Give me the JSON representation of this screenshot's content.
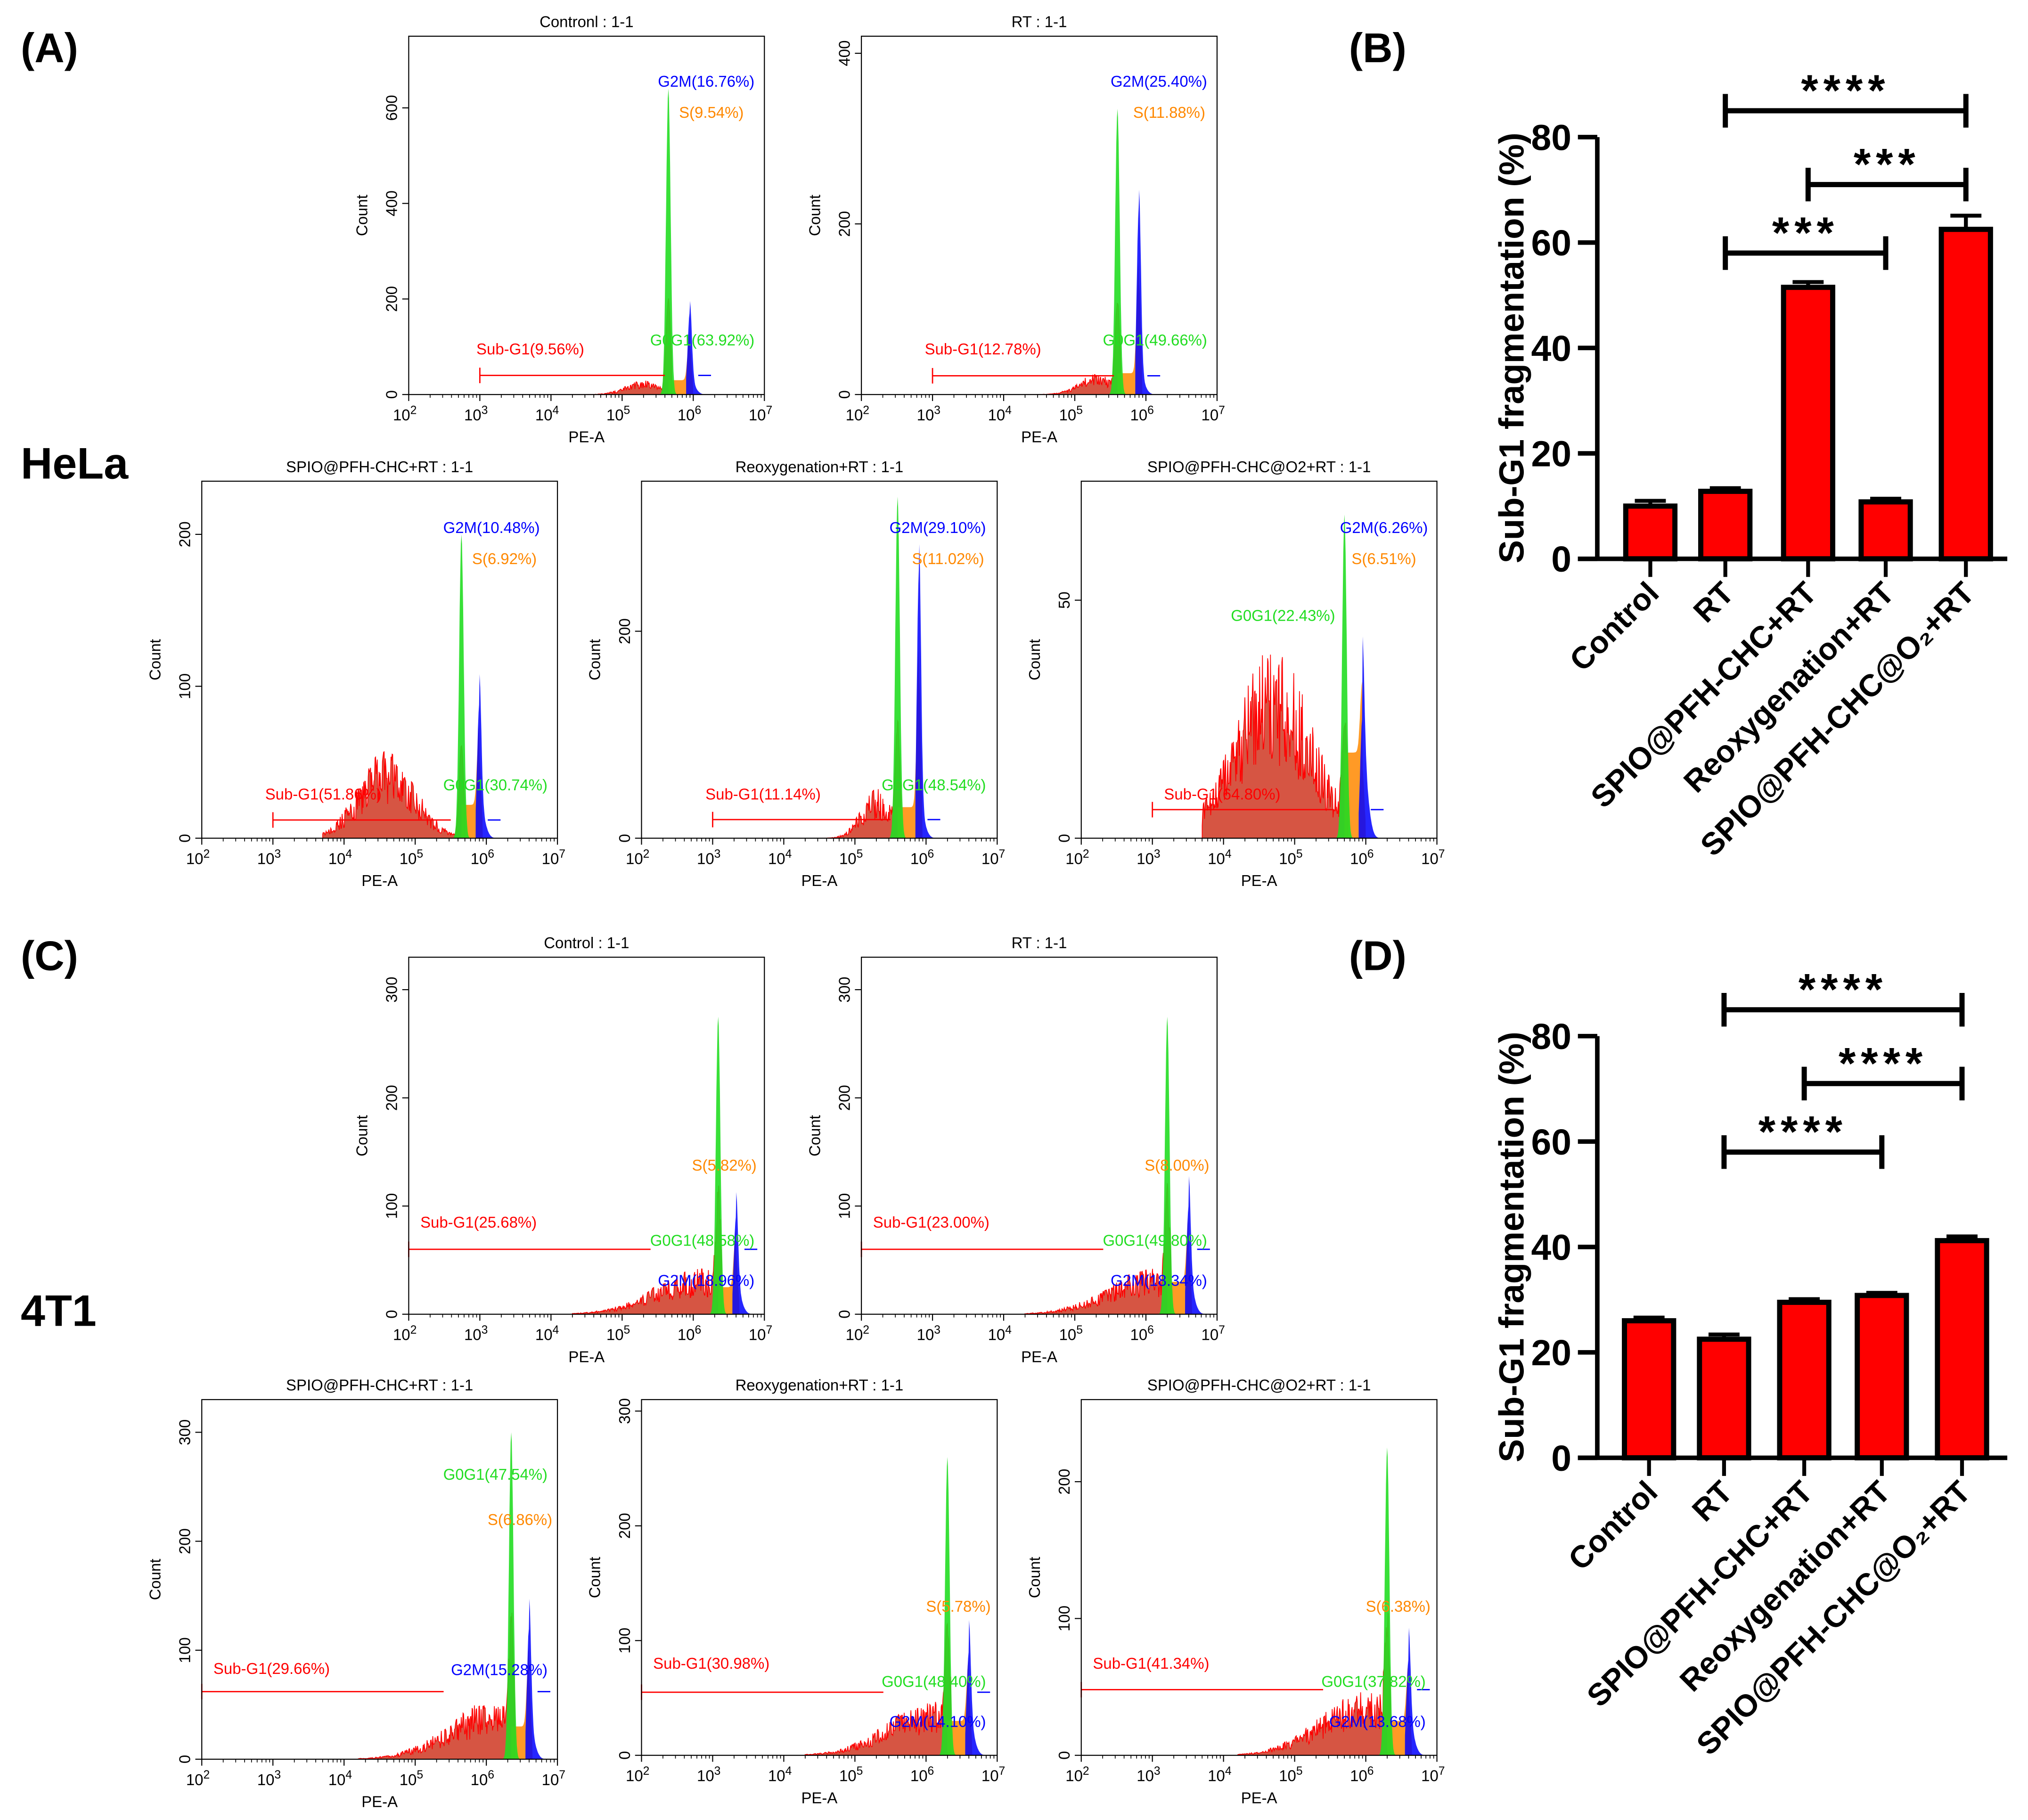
{
  "panel_labels": {
    "a": "(A)",
    "b": "(B)",
    "c": "(C)",
    "d": "(D)"
  },
  "cell_lines": {
    "hela": "HeLa",
    "t4t1": "4T1"
  },
  "colors": {
    "red": "#ff0000",
    "green": "#22dd22",
    "orange": "#ff8800",
    "blue": "#0000ff",
    "bar": "#ff0000",
    "subfill": "#cc2a14"
  },
  "histogram_common": {
    "xlabel": "PE-A",
    "ylabel": "Count",
    "xtick_base": "10",
    "xtick_exponents": [
      2,
      3,
      4,
      5,
      6,
      7
    ]
  },
  "chart_data": {
    "histograms": [
      {
        "type": "area",
        "title": "Contronl : 1-1",
        "ylim": [
          0,
          750
        ],
        "yticks": [
          0,
          200,
          400,
          600
        ],
        "labels": [
          {
            "text": "G2M(16.76%)",
            "color": "blue"
          },
          {
            "text": "S(9.54%)",
            "color": "orange"
          },
          {
            "text": "Sub-G1(9.56%)",
            "color": "red"
          },
          {
            "text": "G0G1(63.92%)",
            "color": "green"
          }
        ],
        "sub": {
          "from": 4.3,
          "center": 5.3,
          "width": 0.35,
          "height": 25
        },
        "g1": {
          "log": 5.65,
          "count": 640
        },
        "s_height": 30,
        "g2": {
          "log": 5.95,
          "count": 170
        },
        "gate": {
          "from": 3,
          "to": 5.6,
          "count": 40
        }
      },
      {
        "type": "area",
        "title": "RT : 1-1",
        "ylim": [
          0,
          420
        ],
        "yticks": [
          0,
          200,
          400
        ],
        "labels": [
          {
            "text": "G2M(25.40%)",
            "color": "blue"
          },
          {
            "text": "S(11.88%)",
            "color": "orange"
          },
          {
            "text": "Sub-G1(12.78%)",
            "color": "red"
          },
          {
            "text": "G0G1(49.66%)",
            "color": "green"
          }
        ],
        "sub": {
          "from": 4.3,
          "center": 5.3,
          "width": 0.35,
          "height": 20
        },
        "g1": {
          "log": 5.6,
          "count": 335
        },
        "s_height": 25,
        "g2": {
          "log": 5.9,
          "count": 220
        },
        "gate": {
          "from": 3,
          "to": 5.55,
          "count": 22
        }
      },
      {
        "type": "area",
        "title": "SPIO@PFH-CHC+RT : 1-1",
        "ylim": [
          0,
          235
        ],
        "yticks": [
          0,
          100,
          200
        ],
        "labels": [
          {
            "text": "G2M(10.48%)",
            "color": "blue"
          },
          {
            "text": "S(6.92%)",
            "color": "orange"
          },
          {
            "text": "Sub-G1(51.86%)",
            "color": "red"
          },
          {
            "text": "G0G1(30.74%)",
            "color": "green"
          }
        ],
        "sub": {
          "from": 3.7,
          "center": 4.6,
          "width": 0.55,
          "height": 50
        },
        "g1": {
          "log": 5.65,
          "count": 200
        },
        "s_height": 22,
        "g2": {
          "log": 5.9,
          "count": 88
        },
        "gate": {
          "from": 3,
          "to": 5.5,
          "count": 12
        }
      },
      {
        "type": "area",
        "title": "Reoxygenation+RT : 1-1",
        "ylim": [
          0,
          345
        ],
        "yticks": [
          0,
          200
        ],
        "labels": [
          {
            "text": "G2M(29.10%)",
            "color": "blue"
          },
          {
            "text": "S(11.02%)",
            "color": "orange"
          },
          {
            "text": "Sub-G1(11.14%)",
            "color": "red"
          },
          {
            "text": "G0G1(48.54%)",
            "color": "green"
          }
        ],
        "sub": {
          "from": 4.4,
          "center": 5.3,
          "width": 0.3,
          "height": 40
        },
        "g1": {
          "log": 5.6,
          "count": 330
        },
        "s_height": 30,
        "g2": {
          "log": 5.9,
          "count": 260
        },
        "gate": {
          "from": 3,
          "to": 5.5,
          "count": 18
        }
      },
      {
        "type": "area",
        "title": "SPIO@PFH-CHC@O2+RT : 1-1",
        "ylim": [
          0,
          75
        ],
        "yticks": [
          0,
          50
        ],
        "labels": [
          {
            "text": "G2M(6.26%)",
            "color": "blue"
          },
          {
            "text": "S(6.51%)",
            "color": "orange"
          },
          {
            "text": "G0G1(22.43%)",
            "color": "green"
          },
          {
            "text": "Sub-G1(64.80%)",
            "color": "red"
          }
        ],
        "sub": {
          "from": 3.7,
          "center": 4.7,
          "width": 0.75,
          "height": 34
        },
        "g1": {
          "log": 5.7,
          "count": 68
        },
        "s_height": 18,
        "g2": {
          "log": 5.95,
          "count": 25
        },
        "gate": {
          "from": 3,
          "to": 5.55,
          "count": 6
        }
      },
      {
        "type": "area",
        "title": "Control : 1-1",
        "ylim": [
          0,
          330
        ],
        "yticks": [
          0,
          100,
          200,
          300
        ],
        "labels": [
          {
            "text": "S(5.82%)",
            "color": "orange"
          },
          {
            "text": "Sub-G1(25.68%)",
            "color": "red"
          },
          {
            "text": "G0G1(48.58%)",
            "color": "green"
          },
          {
            "text": "G2M(18.96%)",
            "color": "blue"
          }
        ],
        "sub": {
          "from": 4.3,
          "center": 6.1,
          "width": 0.9,
          "height": 35
        },
        "g1": {
          "log": 6.35,
          "count": 275
        },
        "s_height": 25,
        "g2": {
          "log": 6.6,
          "count": 90
        },
        "gate": {
          "from": 2,
          "to": 5.4,
          "count": 60
        }
      },
      {
        "type": "area",
        "title": "RT : 1-1",
        "ylim": [
          0,
          330
        ],
        "yticks": [
          0,
          100,
          200,
          300
        ],
        "labels": [
          {
            "text": "S(8.00%)",
            "color": "orange"
          },
          {
            "text": "Sub-G1(23.00%)",
            "color": "red"
          },
          {
            "text": "G0G1(49.80%)",
            "color": "green"
          },
          {
            "text": "G2M(18.34%)",
            "color": "blue"
          }
        ],
        "sub": {
          "from": 4.3,
          "center": 6.1,
          "width": 0.9,
          "height": 35
        },
        "g1": {
          "log": 6.3,
          "count": 275
        },
        "s_height": 30,
        "g2": {
          "log": 6.6,
          "count": 100
        },
        "gate": {
          "from": 2,
          "to": 5.4,
          "count": 60
        }
      },
      {
        "type": "area",
        "title": "SPIO@PFH-CHC+RT : 1-1",
        "ylim": [
          0,
          330
        ],
        "yticks": [
          0,
          100,
          200,
          300
        ],
        "labels": [
          {
            "text": "G0G1(47.54%)",
            "color": "green"
          },
          {
            "text": "S(6.86%)",
            "color": "orange"
          },
          {
            "text": "Sub-G1(29.66%)",
            "color": "red"
          },
          {
            "text": "G2M(15.28%)",
            "color": "blue"
          }
        ],
        "sub": {
          "from": 4.2,
          "center": 6.1,
          "width": 0.9,
          "height": 45
        },
        "g1": {
          "log": 6.35,
          "count": 300
        },
        "s_height": 30,
        "g2": {
          "log": 6.6,
          "count": 120
        },
        "gate": {
          "from": 2,
          "to": 5.4,
          "count": 62
        }
      },
      {
        "type": "area",
        "title": "Reoxygenation+RT : 1-1",
        "ylim": [
          0,
          310
        ],
        "yticks": [
          0,
          100,
          200,
          300
        ],
        "labels": [
          {
            "text": "S(5.78%)",
            "color": "orange"
          },
          {
            "text": "Sub-G1(30.98%)",
            "color": "red"
          },
          {
            "text": "G0G1(48.40%)",
            "color": "green"
          },
          {
            "text": "G2M(14.10%)",
            "color": "blue"
          }
        ],
        "sub": {
          "from": 4.3,
          "center": 6.1,
          "width": 0.9,
          "height": 40
        },
        "g1": {
          "log": 6.3,
          "count": 260
        },
        "s_height": 30,
        "g2": {
          "log": 6.6,
          "count": 90
        },
        "gate": {
          "from": 2,
          "to": 5.4,
          "count": 55
        }
      },
      {
        "type": "area",
        "title": "SPIO@PFH-CHC@O2+RT : 1-1",
        "ylim": [
          0,
          260
        ],
        "yticks": [
          0,
          100,
          200
        ],
        "labels": [
          {
            "text": "S(6.38%)",
            "color": "orange"
          },
          {
            "text": "Sub-G1(41.34%)",
            "color": "red"
          },
          {
            "text": "G0G1(37.82%)",
            "color": "green"
          },
          {
            "text": "G2M(13.68%)",
            "color": "blue"
          }
        ],
        "sub": {
          "from": 4.2,
          "center": 6.0,
          "width": 0.9,
          "height": 40
        },
        "g1": {
          "log": 6.3,
          "count": 225
        },
        "s_height": 25,
        "g2": {
          "log": 6.6,
          "count": 70
        },
        "gate": {
          "from": 2,
          "to": 5.4,
          "count": 48
        }
      }
    ],
    "bars": [
      {
        "type": "bar",
        "panel": "B",
        "categories": [
          "Control",
          "RT",
          "SPIO@PFH-CHC+RT",
          "Reoxygenation+RT",
          "SPIO@PFH-CHC@O₂+RT"
        ],
        "values": [
          10.0,
          12.8,
          51.5,
          10.8,
          62.5
        ],
        "errors": [
          1.0,
          0.6,
          1.0,
          0.6,
          2.6
        ],
        "ylabel": "Sub-G1 fragmentation (%)",
        "ylim": [
          0,
          80
        ],
        "yticks": [
          0,
          20,
          40,
          60,
          80
        ],
        "significance": [
          {
            "from": 1,
            "to": 3,
            "label": "***",
            "level": 58
          },
          {
            "from": 2,
            "to": 4,
            "label": "***",
            "level": 71
          },
          {
            "from": 1,
            "to": 4,
            "label": "****",
            "level": 85
          }
        ]
      },
      {
        "type": "bar",
        "panel": "D",
        "categories": [
          "Control",
          "RT",
          "SPIO@PFH-CHC+RT",
          "Reoxygenation+RT",
          "SPIO@PFH-CHC@O₂+RT"
        ],
        "values": [
          26.0,
          22.5,
          29.5,
          30.8,
          41.2
        ],
        "errors": [
          0.6,
          0.9,
          0.6,
          0.5,
          0.8
        ],
        "ylabel": "Sub-G1 fragmentation (%)",
        "ylim": [
          0,
          80
        ],
        "yticks": [
          0,
          20,
          40,
          60,
          80
        ],
        "significance": [
          {
            "from": 1,
            "to": 3,
            "label": "****",
            "level": 58
          },
          {
            "from": 2,
            "to": 4,
            "label": "****",
            "level": 71
          },
          {
            "from": 1,
            "to": 4,
            "label": "****",
            "level": 85
          }
        ]
      }
    ]
  }
}
